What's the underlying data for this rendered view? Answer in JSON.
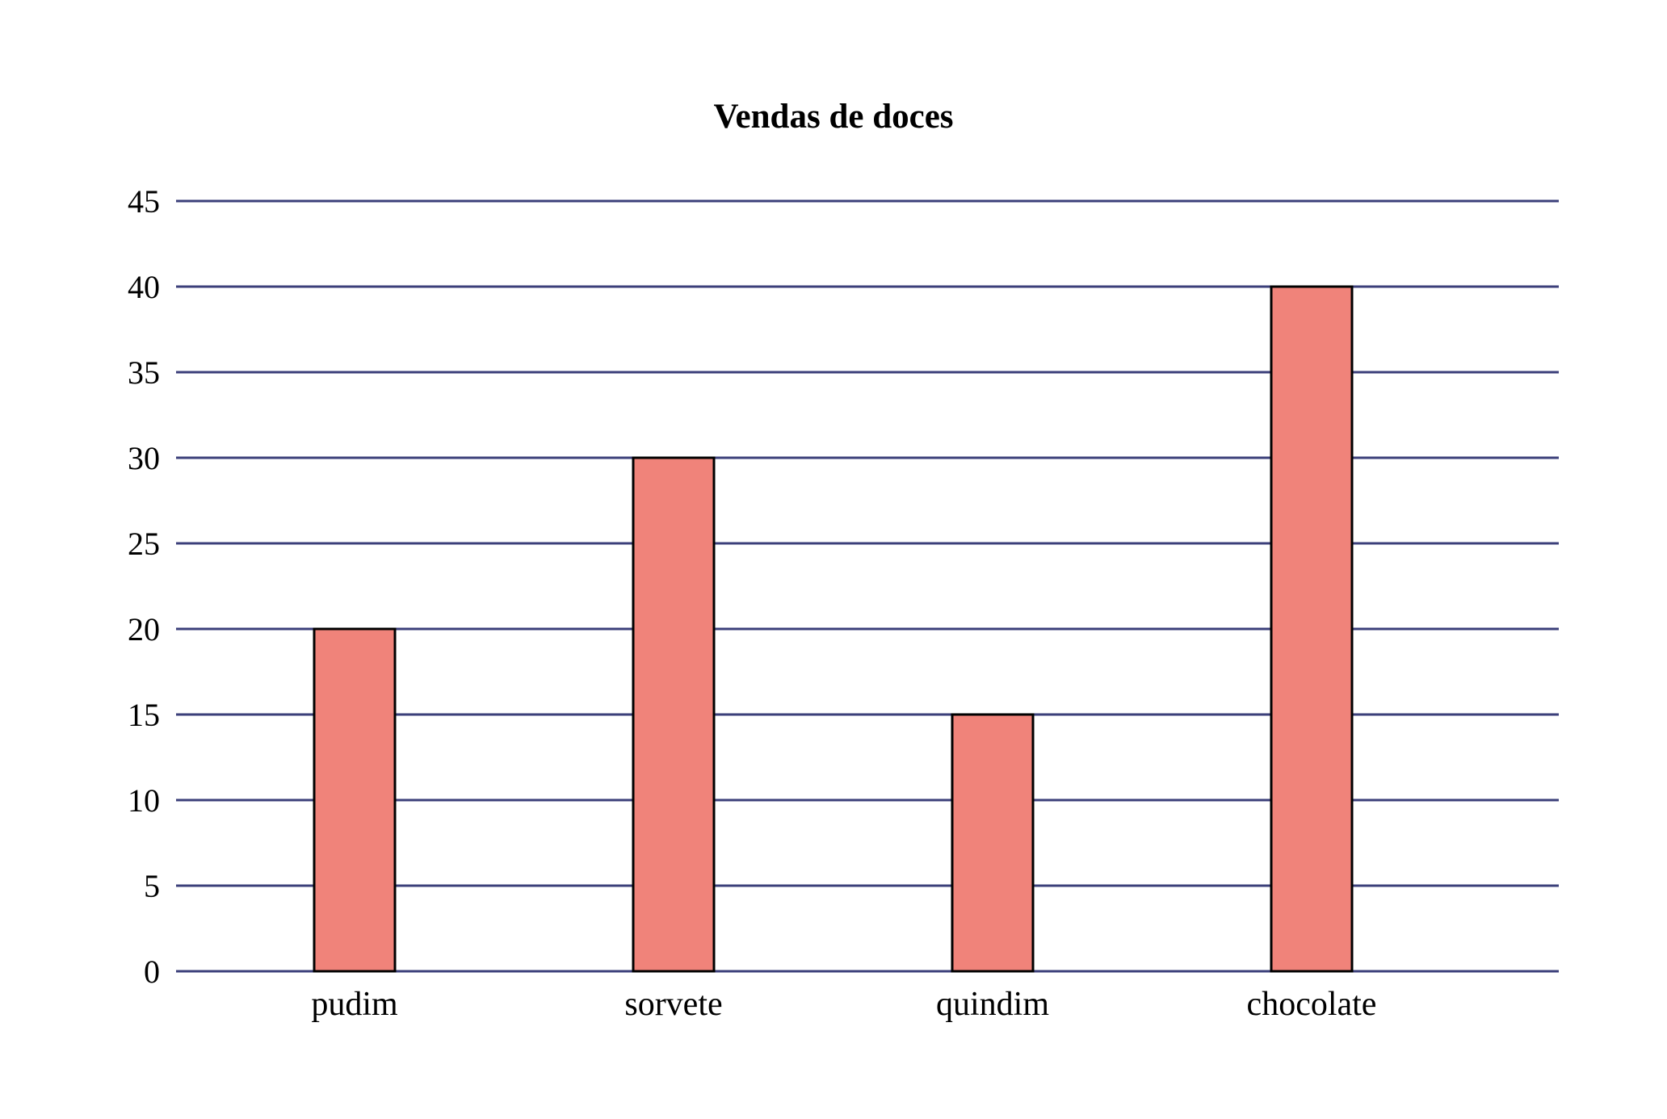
{
  "chart_data": {
    "type": "bar",
    "title": "Vendas de doces",
    "xlabel": "",
    "ylabel": "",
    "categories": [
      "pudim",
      "sorvete",
      "quindim",
      "chocolate"
    ],
    "values": [
      20,
      30,
      15,
      40
    ],
    "ylim": [
      0,
      45
    ],
    "yticks": [
      0,
      5,
      10,
      15,
      20,
      25,
      30,
      35,
      40,
      45
    ],
    "grid": true,
    "legend": "none",
    "colors": {
      "bar_fill": "#f0837a",
      "bar_stroke": "#000000",
      "grid": "#3b3f7a",
      "text": "#000000"
    }
  }
}
